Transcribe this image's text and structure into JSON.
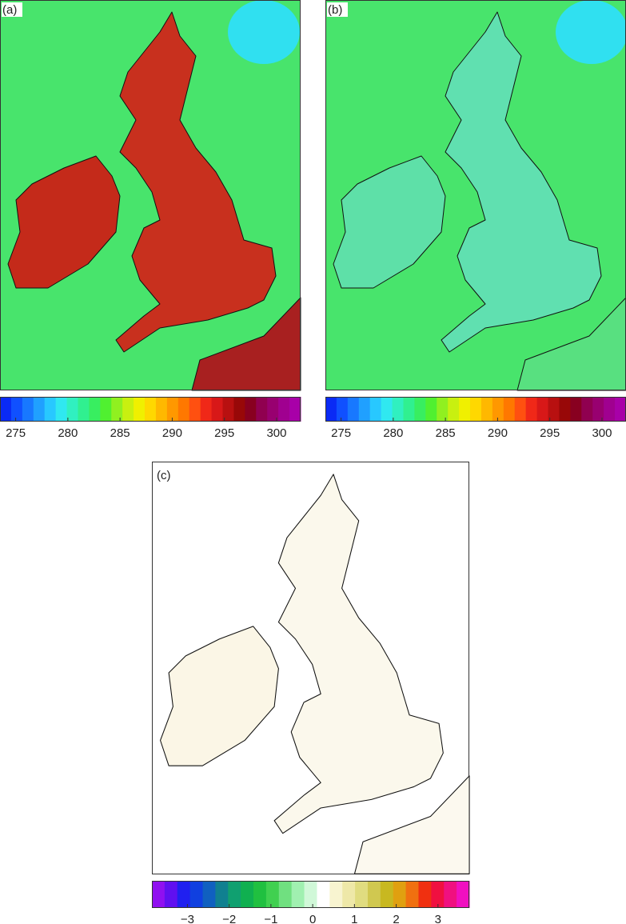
{
  "panels": [
    {
      "label": "(a)",
      "colorbar": {
        "lim": [
          273.5,
          302.3
        ],
        "ticks": [
          275,
          280,
          285,
          290,
          295,
          300
        ],
        "colors": [
          "#0a2af5",
          "#1050ff",
          "#1878ff",
          "#20a0ff",
          "#28c8ff",
          "#30e8f0",
          "#30f0c0",
          "#30f090",
          "#38ee60",
          "#50f030",
          "#90f020",
          "#c8f010",
          "#f0f000",
          "#ffd800",
          "#ffb800",
          "#ff9800",
          "#ff7800",
          "#ff5010",
          "#f02818",
          "#d81818",
          "#b81010",
          "#980808",
          "#880020",
          "#900050",
          "#980070",
          "#a00090",
          "#a800a8"
        ]
      }
    },
    {
      "label": "(b)",
      "colorbar": {
        "lim": [
          273.5,
          302.3
        ],
        "ticks": [
          275,
          280,
          285,
          290,
          295,
          300
        ],
        "colors": [
          "#0a2af5",
          "#1050ff",
          "#1878ff",
          "#20a0ff",
          "#28c8ff",
          "#30e8f0",
          "#30f0c0",
          "#30f090",
          "#38ee60",
          "#50f030",
          "#90f020",
          "#c8f010",
          "#f0f000",
          "#ffd800",
          "#ffb800",
          "#ff9800",
          "#ff7800",
          "#ff5010",
          "#f02818",
          "#d81818",
          "#b81010",
          "#980808",
          "#880020",
          "#900050",
          "#980070",
          "#a00090",
          "#a800a8"
        ]
      }
    },
    {
      "label": "(c)",
      "colorbar": {
        "lim": [
          -3.85,
          3.75
        ],
        "ticks": [
          {
            "value": -3,
            "label": "−3"
          },
          {
            "value": -2,
            "label": "−2"
          },
          {
            "value": -1,
            "label": "−1"
          },
          0,
          1,
          2,
          3
        ],
        "colors": [
          "#9010f0",
          "#6010f0",
          "#2020f0",
          "#1040e0",
          "#1060c0",
          "#108090",
          "#10a070",
          "#10b050",
          "#20c040",
          "#40d050",
          "#70e080",
          "#a0f0b0",
          "#d0f8d8",
          "#ffffff",
          "#f8f4d0",
          "#eee8a8",
          "#e0dc80",
          "#d0c850",
          "#c8b820",
          "#e0a010",
          "#f07010",
          "#f03010",
          "#f01040",
          "#f01080",
          "#f010c0"
        ]
      }
    }
  ]
}
